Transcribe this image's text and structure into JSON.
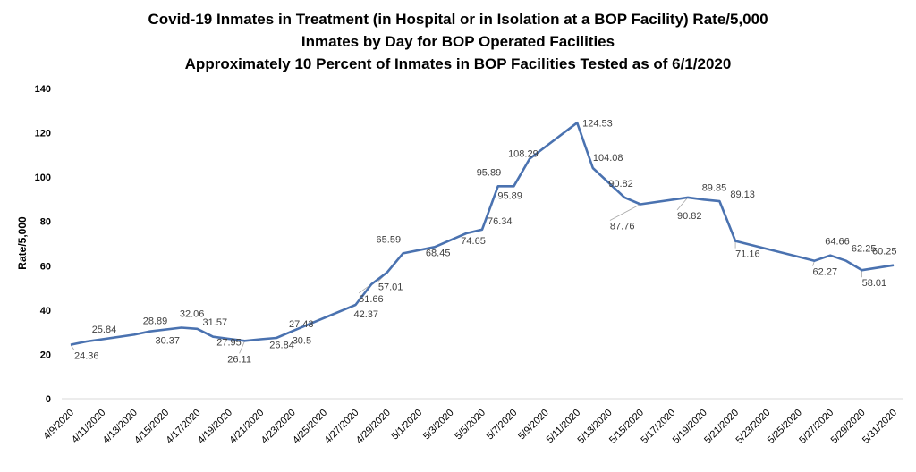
{
  "chart_data": {
    "type": "line",
    "title_lines": [
      "Covid-19 Inmates in Treatment (in Hospital or in Isolation at a BOP Facility) Rate/5,000",
      "Inmates by Day for BOP Operated Facilities",
      "Approximately 10 Percent of Inmates in BOP Facilities Tested as of 6/1/2020"
    ],
    "ylabel": "Rate/5,000",
    "ylim": [
      0,
      140
    ],
    "yticks": [
      0,
      20,
      40,
      60,
      80,
      100,
      120,
      140
    ],
    "xlim": [
      "2020-04-09",
      "2020-05-31"
    ],
    "xtick_labels": [
      "4/9/2020",
      "4/11/2020",
      "4/13/2020",
      "4/15/2020",
      "4/17/2020",
      "4/19/2020",
      "4/21/2020",
      "4/23/2020",
      "4/25/2020",
      "4/27/2020",
      "4/29/2020",
      "5/1/2020",
      "5/3/2020",
      "5/5/2020",
      "5/7/2020",
      "5/9/2020",
      "5/11/2020",
      "5/13/2020",
      "5/15/2020",
      "5/17/2020",
      "5/19/2020",
      "5/21/2020",
      "5/23/2020",
      "5/25/2020",
      "5/27/2020",
      "5/29/2020",
      "5/31/2020"
    ],
    "grid": false,
    "legend": "none",
    "line_color": "#4a72b0",
    "points": [
      {
        "x": "2020-04-09",
        "y": 24.36,
        "label": "24.36"
      },
      {
        "x": "2020-04-10",
        "y": 25.84,
        "label": "25.84"
      },
      {
        "x": "2020-04-13",
        "y": 28.89,
        "label": "28.89"
      },
      {
        "x": "2020-04-14",
        "y": 30.37,
        "label": "30.37"
      },
      {
        "x": "2020-04-16",
        "y": 32.06,
        "label": "32.06"
      },
      {
        "x": "2020-04-17",
        "y": 31.57,
        "label": "31.57"
      },
      {
        "x": "2020-04-18",
        "y": 27.95,
        "label": "27.95"
      },
      {
        "x": "2020-04-20",
        "y": 26.11,
        "label": "26.11"
      },
      {
        "x": "2020-04-21",
        "y": 26.84,
        "label": "26.84"
      },
      {
        "x": "2020-04-22",
        "y": 27.43,
        "label": "27.43"
      },
      {
        "x": "2020-04-23",
        "y": 30.5,
        "label": "30.5"
      },
      {
        "x": "2020-04-27",
        "y": 42.37,
        "label": "42.37"
      },
      {
        "x": "2020-04-28",
        "y": 51.66,
        "label": "51.66"
      },
      {
        "x": "2020-04-29",
        "y": 57.01,
        "label": "57.01"
      },
      {
        "x": "2020-04-30",
        "y": 65.59,
        "label": "65.59"
      },
      {
        "x": "2020-05-02",
        "y": 68.45,
        "label": "68.45"
      },
      {
        "x": "2020-05-04",
        "y": 74.65,
        "label": "74.65"
      },
      {
        "x": "2020-05-05",
        "y": 76.34,
        "label": "76.34"
      },
      {
        "x": "2020-05-06",
        "y": 95.89,
        "label": "95.89"
      },
      {
        "x": "2020-05-07",
        "y": 95.89,
        "label": "95.89"
      },
      {
        "x": "2020-05-08",
        "y": 108.29,
        "label": "108.29"
      },
      {
        "x": "2020-05-11",
        "y": 124.53,
        "label": "124.53"
      },
      {
        "x": "2020-05-12",
        "y": 104.08,
        "label": "104.08"
      },
      {
        "x": "2020-05-14",
        "y": 90.82,
        "label": "90.82"
      },
      {
        "x": "2020-05-15",
        "y": 87.76,
        "label": "87.76"
      },
      {
        "x": "2020-05-18",
        "y": 90.82,
        "label": "90.82"
      },
      {
        "x": "2020-05-19",
        "y": 89.85,
        "label": "89.85"
      },
      {
        "x": "2020-05-20",
        "y": 89.13,
        "label": "89.13"
      },
      {
        "x": "2020-05-21",
        "y": 71.16,
        "label": "71.16"
      },
      {
        "x": "2020-05-26",
        "y": 62.27,
        "label": "62.27"
      },
      {
        "x": "2020-05-27",
        "y": 64.66,
        "label": "64.66"
      },
      {
        "x": "2020-05-28",
        "y": 62.25,
        "label": "62.25"
      },
      {
        "x": "2020-05-29",
        "y": 58.01,
        "label": "58.01"
      },
      {
        "x": "2020-05-31",
        "y": 60.25,
        "label": "60.25"
      }
    ]
  }
}
